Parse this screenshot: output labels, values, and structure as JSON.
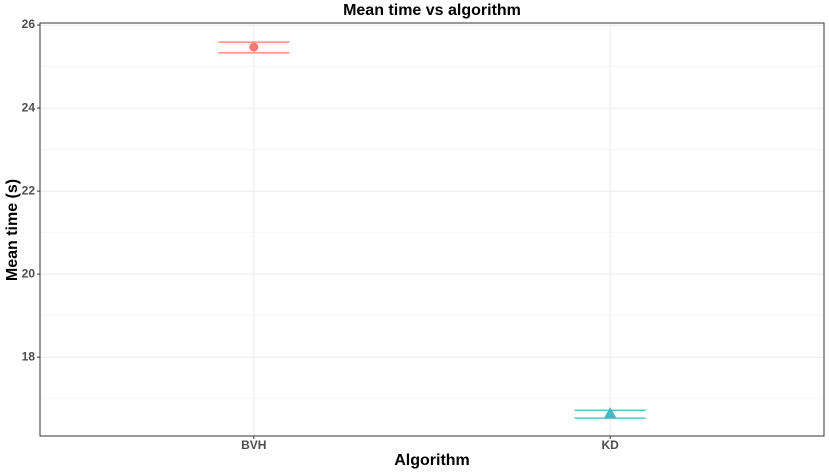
{
  "chart_data": {
    "type": "pointrange",
    "title": "Mean time vs algorithm",
    "x_label": "Algorithm",
    "y_label": "Mean time (s)",
    "categories": [
      "BVH",
      "KD"
    ],
    "values": [
      25.47,
      16.65
    ],
    "lower": [
      25.33,
      16.53
    ],
    "upper": [
      25.59,
      16.72
    ],
    "colors": [
      "#f07c6e",
      "#3fb9c4"
    ],
    "shapes": [
      "circle",
      "triangle"
    ],
    "ylim": [
      16.1,
      26.05
    ],
    "yticks": [
      18,
      20,
      22,
      24,
      26
    ],
    "minor_yticks": [
      17,
      19,
      21,
      23,
      25
    ],
    "grid": true
  }
}
